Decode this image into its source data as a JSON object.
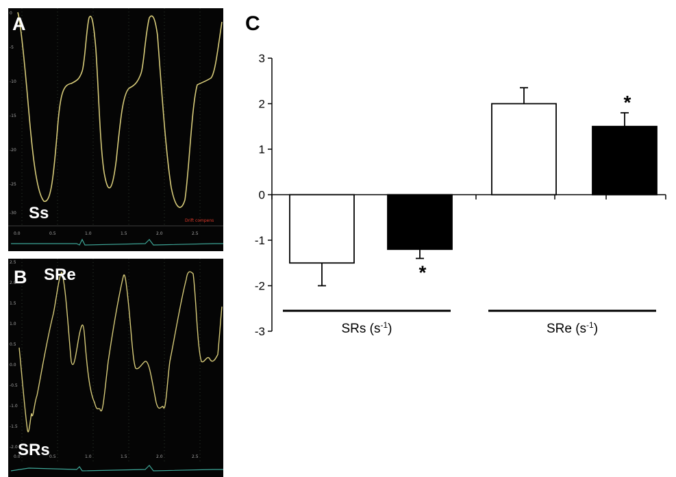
{
  "panels": {
    "a": {
      "letter": "A",
      "trace_label": "Ss",
      "drift_text": "Drift compens",
      "x_ticks": [
        "0.0",
        "0.5",
        "1.0",
        "1.5",
        "2.0",
        "2.5"
      ],
      "y_ticks": [
        "0",
        "-5",
        "-10",
        "-15",
        "-20",
        "-25",
        "-30"
      ],
      "trace_color": "#d8cc7a"
    },
    "b": {
      "letter": "B",
      "trace_label_top": "SRe",
      "trace_label_bottom": "SRs",
      "x_ticks": [
        "0.0",
        "0.5",
        "1.0",
        "1.5",
        "2.0",
        "2.5"
      ],
      "y_ticks": [
        "2.5",
        "2.0",
        "1.5",
        "1.0",
        "0.5",
        "0.0",
        "-0.5",
        "-1.0",
        "-1.5",
        "-2.0"
      ],
      "trace_color": "#d8cc7a"
    },
    "c": {
      "letter": "C"
    }
  },
  "chart_data": {
    "type": "bar",
    "ylim": [
      -3,
      3
    ],
    "yticks": [
      3,
      2,
      1,
      0,
      -1,
      -2,
      -3
    ],
    "groups": [
      {
        "label": "SRs (s",
        "sup": "-1",
        "close": ")"
      },
      {
        "label": "SRe (s",
        "sup": "-1",
        "close": ")"
      }
    ],
    "bars": [
      {
        "group": 0,
        "fill": "white",
        "value": -1.5,
        "error": 0.5,
        "sig": ""
      },
      {
        "group": 0,
        "fill": "black",
        "value": -1.2,
        "error": 0.2,
        "sig": "*"
      },
      {
        "group": 1,
        "fill": "white",
        "value": 2.0,
        "error": 0.35,
        "sig": ""
      },
      {
        "group": 1,
        "fill": "black",
        "value": 1.5,
        "error": 0.3,
        "sig": "*"
      }
    ]
  }
}
